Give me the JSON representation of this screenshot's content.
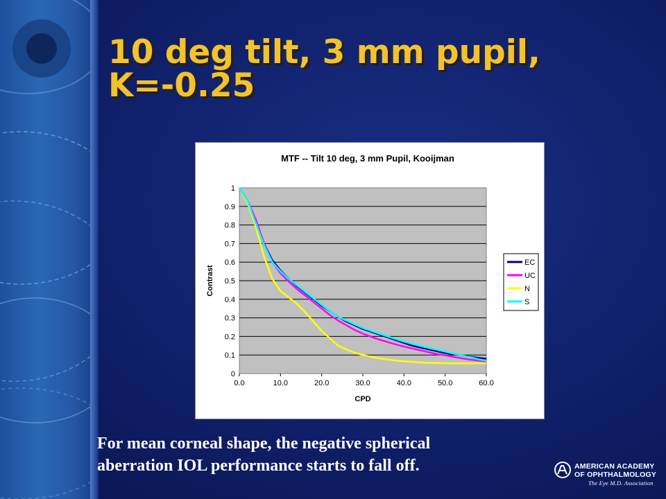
{
  "slide": {
    "title_lines": [
      "10 deg tilt, 3 mm pupil,",
      "K=-0.25"
    ],
    "caption_lines": [
      "For mean corneal shape, the negative spherical",
      "aberration IOL performance starts to fall off."
    ],
    "logo": {
      "line1": "American Academy",
      "line2": "of Ophthalmology",
      "line3": "The Eye M.D. Association"
    }
  },
  "colors": {
    "title": "#f2c22f",
    "plot_background": "#c0c0c0",
    "EC": "#000080",
    "UC": "#ff00ff",
    "N": "#ffff00",
    "S": "#00ffff"
  },
  "chart_data": {
    "type": "line",
    "title": "MTF -- Tilt 10 deg, 3 mm Pupil, Kooijman",
    "xlabel": "CPD",
    "ylabel": "Contrast",
    "xlim": [
      0,
      60
    ],
    "ylim": [
      0,
      1
    ],
    "x_ticks": [
      "0.0",
      "10.0",
      "20.0",
      "30.0",
      "40.0",
      "50.0",
      "60.0"
    ],
    "y_ticks": [
      "0",
      "0.1",
      "0.2",
      "0.3",
      "0.4",
      "0.5",
      "0.6",
      "0.7",
      "0.8",
      "0.9",
      "1"
    ],
    "grid": "horizontal",
    "legend_position": "right",
    "x": [
      0,
      2,
      4,
      6,
      8,
      10,
      12,
      14,
      16,
      18,
      20,
      22,
      24,
      26,
      28,
      30,
      32,
      34,
      36,
      38,
      40,
      42,
      44,
      46,
      48,
      50,
      52,
      54,
      56,
      58,
      60
    ],
    "series": [
      {
        "name": "EC",
        "color": "#000080",
        "values": [
          1.0,
          0.93,
          0.82,
          0.7,
          0.61,
          0.555,
          0.51,
          0.47,
          0.435,
          0.4,
          0.365,
          0.335,
          0.305,
          0.28,
          0.26,
          0.24,
          0.225,
          0.21,
          0.195,
          0.18,
          0.165,
          0.15,
          0.14,
          0.13,
          0.12,
          0.11,
          0.105,
          0.098,
          0.09,
          0.085,
          0.08
        ]
      },
      {
        "name": "UC",
        "color": "#ff00ff",
        "values": [
          1.0,
          0.93,
          0.83,
          0.7,
          0.6,
          0.54,
          0.495,
          0.455,
          0.42,
          0.385,
          0.35,
          0.315,
          0.285,
          0.26,
          0.235,
          0.215,
          0.198,
          0.183,
          0.17,
          0.157,
          0.145,
          0.135,
          0.125,
          0.115,
          0.105,
          0.098,
          0.09,
          0.082,
          0.075,
          0.07,
          0.065
        ]
      },
      {
        "name": "N",
        "color": "#ffff00",
        "values": [
          1.0,
          0.92,
          0.79,
          0.63,
          0.51,
          0.445,
          0.41,
          0.375,
          0.33,
          0.28,
          0.23,
          0.19,
          0.15,
          0.13,
          0.112,
          0.1,
          0.09,
          0.082,
          0.076,
          0.07,
          0.066,
          0.063,
          0.06,
          0.058,
          0.057,
          0.056,
          0.055,
          0.055,
          0.055,
          0.055,
          0.055
        ]
      },
      {
        "name": "S",
        "color": "#00ffff",
        "values": [
          1.0,
          0.93,
          0.81,
          0.69,
          0.6,
          0.55,
          0.51,
          0.475,
          0.44,
          0.405,
          0.37,
          0.335,
          0.305,
          0.285,
          0.265,
          0.245,
          0.23,
          0.215,
          0.2,
          0.186,
          0.172,
          0.16,
          0.148,
          0.138,
          0.128,
          0.118,
          0.108,
          0.098,
          0.088,
          0.078,
          0.068
        ]
      }
    ]
  }
}
